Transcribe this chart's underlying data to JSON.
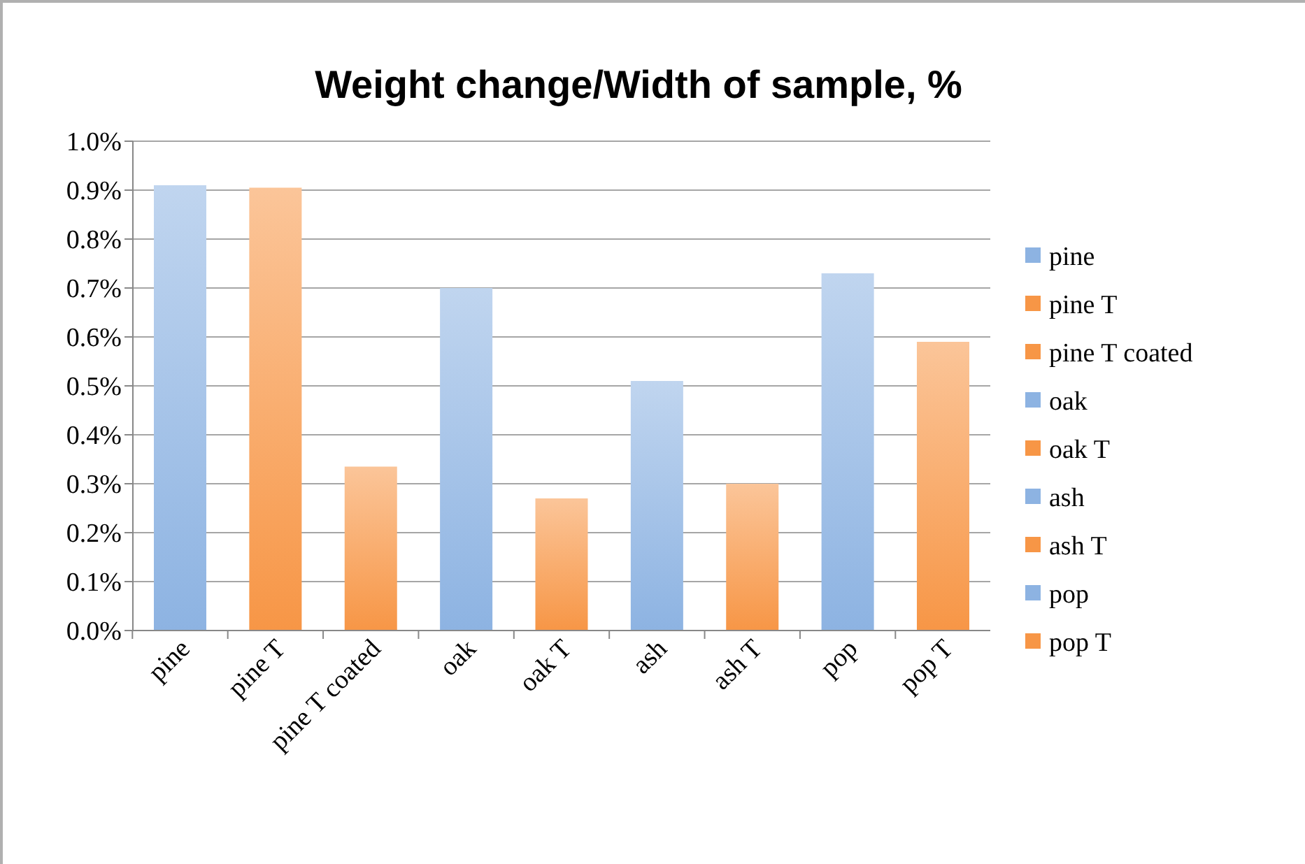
{
  "chart_data": {
    "type": "bar",
    "title": "Weight change/Width of sample, %",
    "categories": [
      "pine",
      "pine T",
      "pine T coated",
      "oak",
      "oak T",
      "ash",
      "ash T",
      "pop",
      "pop T"
    ],
    "series": [
      {
        "name": "pine",
        "color": "#8db3e2",
        "values": [
          0.91,
          null,
          null,
          null,
          null,
          null,
          null,
          null,
          null
        ]
      },
      {
        "name": "pine T",
        "color": "#f79646",
        "values": [
          null,
          0.905,
          null,
          null,
          null,
          null,
          null,
          null,
          null
        ]
      },
      {
        "name": "pine T coated",
        "color": "#f79646",
        "values": [
          null,
          null,
          0.335,
          null,
          null,
          null,
          null,
          null,
          null
        ]
      },
      {
        "name": "oak",
        "color": "#8db3e2",
        "values": [
          null,
          null,
          null,
          0.7,
          null,
          null,
          null,
          null,
          null
        ]
      },
      {
        "name": "oak T",
        "color": "#f79646",
        "values": [
          null,
          null,
          null,
          null,
          0.27,
          null,
          null,
          null,
          null
        ]
      },
      {
        "name": "ash",
        "color": "#8db3e2",
        "values": [
          null,
          null,
          null,
          null,
          null,
          0.51,
          null,
          null,
          null
        ]
      },
      {
        "name": "ash T",
        "color": "#f79646",
        "values": [
          null,
          null,
          null,
          null,
          null,
          null,
          0.3,
          null,
          null
        ]
      },
      {
        "name": "pop",
        "color": "#8db3e2",
        "values": [
          null,
          null,
          null,
          null,
          null,
          null,
          null,
          0.73,
          null
        ]
      },
      {
        "name": "pop T",
        "color": "#f79646",
        "values": [
          null,
          null,
          null,
          null,
          null,
          null,
          null,
          null,
          0.59
        ]
      }
    ],
    "stacked": true,
    "ylim": [
      0,
      1.0
    ],
    "yticks": [
      {
        "value": 0,
        "label": "0.0%"
      },
      {
        "value": 0.1,
        "label": "0.1%"
      },
      {
        "value": 0.2,
        "label": "0.2%"
      },
      {
        "value": 0.3,
        "label": "0.3%"
      },
      {
        "value": 0.4,
        "label": "0.4%"
      },
      {
        "value": 0.5,
        "label": "0.5%"
      },
      {
        "value": 0.6,
        "label": "0.6%"
      },
      {
        "value": 0.7,
        "label": "0.7%"
      },
      {
        "value": 0.8,
        "label": "0.8%"
      },
      {
        "value": 0.9,
        "label": "0.9%"
      },
      {
        "value": 1.0,
        "label": "1.0%"
      }
    ],
    "grid": "y",
    "legend": "right"
  }
}
